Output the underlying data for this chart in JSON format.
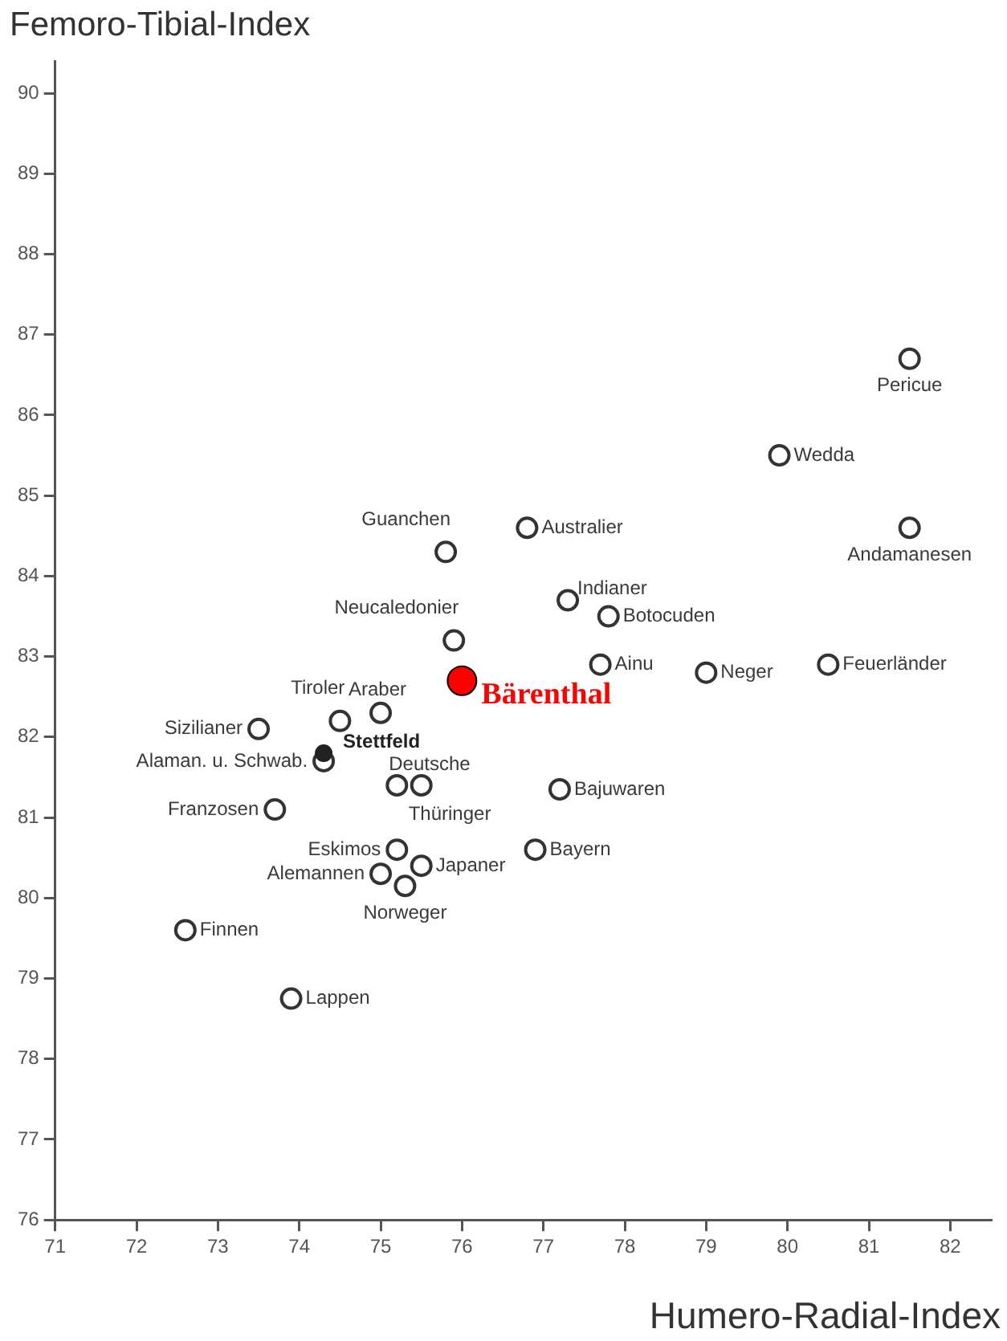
{
  "chart_data": {
    "type": "scatter",
    "xlabel": "Humero-Radial-Index",
    "ylabel": "Femoro-Tibial-Index",
    "xlim": [
      71,
      82.5
    ],
    "xticks": [
      71,
      72,
      73,
      74,
      75,
      76,
      77,
      78,
      79,
      80,
      81,
      82
    ],
    "ylim": [
      76,
      90.4
    ],
    "yticks": [
      76,
      77,
      78,
      79,
      80,
      81,
      82,
      83,
      84,
      85,
      86,
      87,
      88,
      89,
      90
    ],
    "grid": false,
    "legend": false,
    "marker": "circle",
    "series": [
      {
        "color": "#333333",
        "x": [
          81.5,
          79.9,
          81.5,
          76.8,
          75.8,
          77.3,
          77.8,
          75.9,
          77.7,
          79.0,
          80.5,
          74.5,
          75.0,
          73.5,
          74.3,
          75.2,
          75.5,
          77.2,
          73.7,
          75.2,
          76.9,
          75.0,
          75.5,
          75.3,
          72.6,
          73.9
        ],
        "values": [
          86.7,
          85.5,
          84.6,
          84.6,
          84.3,
          83.7,
          83.5,
          83.2,
          82.9,
          82.8,
          82.9,
          82.2,
          82.3,
          82.1,
          81.7,
          81.4,
          81.4,
          81.35,
          81.1,
          80.6,
          80.6,
          80.3,
          80.4,
          80.15,
          79.6,
          78.75
        ]
      },
      {
        "color": "#222222",
        "x": [
          74.3
        ],
        "values": [
          81.8
        ]
      },
      {
        "color": "#ff0000",
        "x": [
          76.0
        ],
        "values": [
          82.7
        ]
      }
    ],
    "annotations": [
      {
        "text": "Pericue",
        "x": 81.5,
        "y": 86.7
      },
      {
        "text": "Wedda",
        "x": 79.9,
        "y": 85.5
      },
      {
        "text": "Andamanesen",
        "x": 81.5,
        "y": 84.6
      },
      {
        "text": "Australier",
        "x": 76.8,
        "y": 84.6
      },
      {
        "text": "Guanchen",
        "x": 75.8,
        "y": 84.3
      },
      {
        "text": "Indianer",
        "x": 77.3,
        "y": 83.7
      },
      {
        "text": "Botocuden",
        "x": 77.8,
        "y": 83.5
      },
      {
        "text": "Neucaledonier",
        "x": 75.9,
        "y": 83.2
      },
      {
        "text": "Ainu",
        "x": 77.7,
        "y": 82.9
      },
      {
        "text": "Neger",
        "x": 79.0,
        "y": 82.8
      },
      {
        "text": "Feuerländer",
        "x": 80.5,
        "y": 82.9
      },
      {
        "text": "Tiroler",
        "x": 74.5,
        "y": 82.2
      },
      {
        "text": "Araber",
        "x": 75.0,
        "y": 82.3
      },
      {
        "text": "Sizilianer",
        "x": 73.5,
        "y": 82.1
      },
      {
        "text": "Alaman. u. Schwab.",
        "x": 74.3,
        "y": 81.7
      },
      {
        "text": "Deutsche",
        "x": 75.2,
        "y": 81.4
      },
      {
        "text": "Thüringer",
        "x": 75.5,
        "y": 81.4
      },
      {
        "text": "Bajuwaren",
        "x": 77.2,
        "y": 81.35
      },
      {
        "text": "Franzosen",
        "x": 73.7,
        "y": 81.1
      },
      {
        "text": "Eskimos",
        "x": 75.2,
        "y": 80.6
      },
      {
        "text": "Bayern",
        "x": 76.9,
        "y": 80.6
      },
      {
        "text": "Alemannen",
        "x": 75.0,
        "y": 80.3
      },
      {
        "text": "Japaner",
        "x": 75.5,
        "y": 80.4
      },
      {
        "text": "Norweger",
        "x": 75.3,
        "y": 80.15
      },
      {
        "text": "Finnen",
        "x": 72.6,
        "y": 79.6
      },
      {
        "text": "Lappen",
        "x": 73.9,
        "y": 78.75
      },
      {
        "text": "Stettfeld",
        "x": 74.3,
        "y": 81.8
      },
      {
        "text": "Bärenthal",
        "x": 76.0,
        "y": 82.7
      }
    ]
  }
}
